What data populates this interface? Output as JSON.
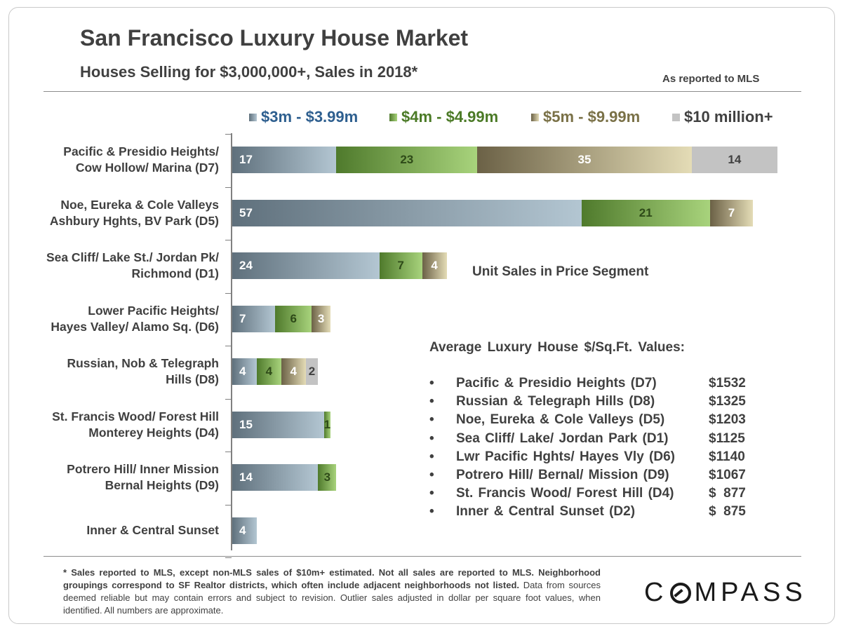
{
  "chart_data": {
    "type": "bar",
    "orientation": "horizontal",
    "stacked": true,
    "title": "San Francisco Luxury House Market",
    "subtitle": "Houses Selling for $3,000,000+, Sales in 2018*",
    "source_note": "As reported to MLS",
    "annotation": "Unit Sales in Price Segment",
    "legend_position": "top",
    "categories": [
      "Pacific & Presidio Heights/\nCow Hollow/ Marina (D7)",
      "Noe, Eureka & Cole Valleys\nAshbury Hghts, BV Park (D5)",
      "Sea Cliff/ Lake St./ Jordan Pk/\nRichmond (D1)",
      "Lower Pacific Heights/\nHayes Valley/ Alamo Sq. (D6)",
      "Russian, Nob & Telegraph\nHills (D8)",
      "St. Francis Wood/ Forest Hill\nMonterey Heights (D4)",
      "Potrero Hill/ Inner Mission\nBernal Heights (D9)",
      "Inner & Central Sunset"
    ],
    "series": [
      {
        "name": "$3m - $3.99m",
        "color_dark": "#5f707c",
        "color_light": "#b3c6d2",
        "label_color": "#ffffff",
        "legend_color": "#2e5f8f",
        "values": [
          17,
          57,
          24,
          7,
          4,
          15,
          14,
          4
        ]
      },
      {
        "name": "$4m - $4.99m",
        "color_dark": "#4f7a2c",
        "color_light": "#a8d37c",
        "label_color": "#2e4a18",
        "legend_color": "#4b7a26",
        "values": [
          23,
          21,
          7,
          6,
          4,
          1,
          3,
          null
        ]
      },
      {
        "name": "$5m - $9.99m",
        "color_dark": "#6b6146",
        "color_light": "#e4dcb6",
        "label_color": "#ffffff",
        "legend_color": "#7a7147",
        "values": [
          35,
          7,
          4,
          3,
          4,
          null,
          null,
          null
        ]
      },
      {
        "name": "$10 million+",
        "color_dark": "#c3c3c3",
        "color_light": "#c3c3c3",
        "label_color": "#404040",
        "legend_color": "#404040",
        "values": [
          14,
          null,
          null,
          null,
          2,
          null,
          null,
          null
        ]
      }
    ],
    "xlim": [
      0,
      89
    ],
    "grid": false
  },
  "ppsf": {
    "heading": "Average  Luxury House $/Sq.Ft. Values:",
    "bullet": "•",
    "items": [
      {
        "name": "Pacific  & Presidio  Heights  (D7)",
        "value": "$1532"
      },
      {
        "name": "Russian  & Telegraph  Hills  (D8)",
        "value": "$1325"
      },
      {
        "name": "Noe, Eureka & Cole Valleys  (D5)",
        "value": "$1203"
      },
      {
        "name": "Sea Cliff/ Lake/ Jordan Park (D1)",
        "value": "$1125"
      },
      {
        "name": "Lwr Pacific Hghts/ Hayes Vly (D6)",
        "value": "$1140"
      },
      {
        "name": "Potrero Hill/ Bernal/ Mission  (D9)",
        "value": "$1067"
      },
      {
        "name": "St. Francis Wood/ Forest Hill (D4)",
        "value": "$  877"
      },
      {
        "name": "Inner & Central  Sunset  (D2)",
        "value": "$  875"
      }
    ]
  },
  "footnote": {
    "bold": "* Sales reported to MLS, except non-MLS sales of $10m+ estimated. Not all sales are reported to MLS. Neighborhood groupings correspond to SF Realtor districts, which often include adjacent neighborhoods not listed.",
    "regular": " Data from sources deemed reliable but may contain errors and subject to revision. Outlier sales adjusted in dollar per square foot values, when identified. All numbers are approximate."
  },
  "logo": {
    "text": "COMPASS"
  }
}
